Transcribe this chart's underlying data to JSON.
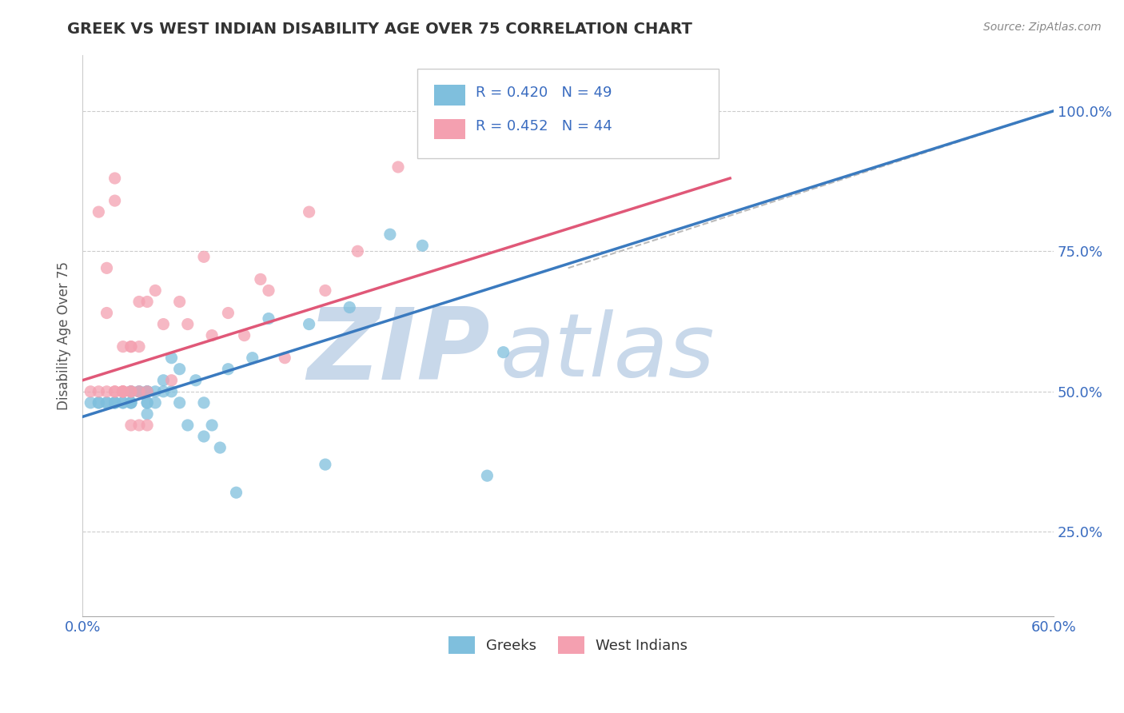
{
  "title": "GREEK VS WEST INDIAN DISABILITY AGE OVER 75 CORRELATION CHART",
  "source": "Source: ZipAtlas.com",
  "ylabel": "Disability Age Over 75",
  "xlim": [
    0.0,
    0.6
  ],
  "ylim": [
    0.1,
    1.1
  ],
  "yticks": [
    0.25,
    0.5,
    0.75,
    1.0
  ],
  "yticklabels": [
    "25.0%",
    "50.0%",
    "75.0%",
    "100.0%"
  ],
  "blue_color": "#7fbfdd",
  "blue_line_color": "#3a7abf",
  "pink_color": "#f4a0b0",
  "pink_line_color": "#e05878",
  "dashed_line_color": "#bbbbbb",
  "watermark_color": "#c8d8ea",
  "greek_x": [
    0.005,
    0.01,
    0.01,
    0.015,
    0.015,
    0.02,
    0.02,
    0.02,
    0.025,
    0.025,
    0.03,
    0.03,
    0.03,
    0.03,
    0.03,
    0.035,
    0.035,
    0.04,
    0.04,
    0.04,
    0.04,
    0.04,
    0.04,
    0.045,
    0.045,
    0.05,
    0.05,
    0.055,
    0.055,
    0.06,
    0.06,
    0.065,
    0.07,
    0.075,
    0.075,
    0.08,
    0.085,
    0.09,
    0.095,
    0.105,
    0.115,
    0.14,
    0.15,
    0.165,
    0.19,
    0.21,
    0.25,
    0.26,
    0.28
  ],
  "greek_y": [
    0.48,
    0.48,
    0.48,
    0.48,
    0.48,
    0.48,
    0.48,
    0.48,
    0.48,
    0.48,
    0.5,
    0.5,
    0.48,
    0.48,
    0.48,
    0.5,
    0.5,
    0.5,
    0.5,
    0.48,
    0.5,
    0.48,
    0.46,
    0.5,
    0.48,
    0.52,
    0.5,
    0.56,
    0.5,
    0.54,
    0.48,
    0.44,
    0.52,
    0.48,
    0.42,
    0.44,
    0.4,
    0.54,
    0.32,
    0.56,
    0.63,
    0.62,
    0.37,
    0.65,
    0.78,
    0.76,
    0.35,
    0.57,
    1.0
  ],
  "west_indian_x": [
    0.005,
    0.01,
    0.01,
    0.015,
    0.015,
    0.015,
    0.02,
    0.02,
    0.02,
    0.02,
    0.025,
    0.025,
    0.025,
    0.025,
    0.025,
    0.03,
    0.03,
    0.03,
    0.03,
    0.03,
    0.035,
    0.035,
    0.035,
    0.035,
    0.04,
    0.04,
    0.04,
    0.045,
    0.05,
    0.055,
    0.06,
    0.065,
    0.075,
    0.08,
    0.09,
    0.1,
    0.11,
    0.115,
    0.125,
    0.14,
    0.15,
    0.17,
    0.195,
    0.27
  ],
  "west_indian_y": [
    0.5,
    0.5,
    0.82,
    0.72,
    0.64,
    0.5,
    0.88,
    0.5,
    0.5,
    0.84,
    0.5,
    0.5,
    0.5,
    0.5,
    0.58,
    0.5,
    0.58,
    0.5,
    0.44,
    0.58,
    0.66,
    0.58,
    0.5,
    0.44,
    0.5,
    0.44,
    0.66,
    0.68,
    0.62,
    0.52,
    0.66,
    0.62,
    0.74,
    0.6,
    0.64,
    0.6,
    0.7,
    0.68,
    0.56,
    0.82,
    0.68,
    0.75,
    0.9,
    1.0
  ],
  "blue_line_x0": 0.0,
  "blue_line_y0": 0.455,
  "blue_line_x1": 0.6,
  "blue_line_y1": 1.0,
  "pink_line_x0": 0.0,
  "pink_line_y0": 0.52,
  "pink_line_x1": 0.4,
  "pink_line_y1": 0.88,
  "dash_line_x0": 0.3,
  "dash_line_y0": 0.72,
  "dash_line_x1": 0.6,
  "dash_line_y1": 1.0
}
